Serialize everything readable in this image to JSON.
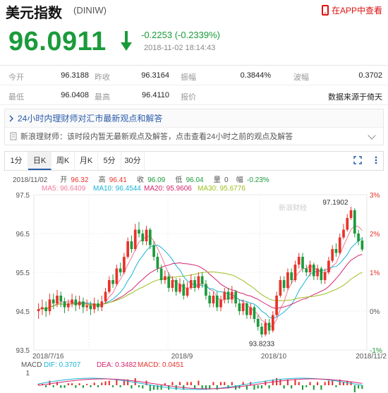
{
  "header": {
    "title": "美元指数",
    "code": "(DINIW)",
    "app_link": "在APP中查看"
  },
  "quote": {
    "price": "96.0911",
    "change": "-0.2253 (-0.2339%)",
    "time": "2018-11-02 18:14:43"
  },
  "stats": {
    "open_label": "今开",
    "open": "96.3188",
    "prev_label": "昨收",
    "prev": "96.3164",
    "amp_label": "振幅",
    "amp": "0.3844%",
    "wave_label": "波幅",
    "wave": "0.3702",
    "low_label": "最低",
    "low": "96.0408",
    "high_label": "最高",
    "high": "96.4110",
    "quote_label": "报价",
    "source": "数据来源于倚天"
  },
  "news": {
    "headline": "24小时内理财师对汇市最新观点和解答",
    "line": "新浪理财师：该时段内暂无最新观点及解答，点击查看24小时之前的观点及解答"
  },
  "tabs": [
    "1分",
    "日K",
    "周K",
    "月K",
    "5分",
    "30分"
  ],
  "active_tab": "日K",
  "chart_info": {
    "date": "2018/11/02",
    "open_label": "开",
    "open": "96.32",
    "high_label": "高",
    "high": "96.41",
    "close_label": "收",
    "close": "96.09",
    "low_label": "低",
    "low": "96.04",
    "vol_label": "量",
    "vol": "0",
    "amp_label": "幅",
    "amp": "-0.23%",
    "ma5": "MA5: 96.6409",
    "ma10": "MA10: 96.4544",
    "ma20": "MA20: 95.9606",
    "ma30": "MA30: 95.6776",
    "watermark": "新浪财经",
    "macd_label": "MACD",
    "dif": "DIF: 0.3707",
    "dea": "DEA: 0.3482",
    "macd": "MACD: 0.0451",
    "macd_tick": "1"
  },
  "colors": {
    "up": "#e8322b",
    "down": "#1a9b3b",
    "ma5": "#f07a9a",
    "ma10": "#19b3d6",
    "ma20": "#d6246e",
    "ma30": "#9bbf20"
  },
  "chart_data": {
    "type": "candlestick",
    "y_ticks": [
      "97.5",
      "96.5",
      "95.5",
      "94.5",
      "93.5"
    ],
    "y_tick_values": [
      97.5,
      96.5,
      95.5,
      94.5,
      93.5
    ],
    "pct_ticks": [
      "3%",
      "2%",
      "1%",
      "0%",
      "-1%"
    ],
    "x_labels": [
      "2018/7/16",
      "2018/9",
      "2018/10",
      "2018/11/2"
    ],
    "ylim": [
      93.5,
      97.5
    ],
    "high_annotation": "97.1902",
    "low_annotation": "93.8233",
    "candles": [
      [
        94.5,
        94.55,
        94.7,
        94.3
      ],
      [
        94.55,
        94.6,
        94.8,
        94.4
      ],
      [
        94.6,
        94.5,
        94.75,
        94.35
      ],
      [
        94.5,
        94.8,
        94.95,
        94.4
      ],
      [
        94.8,
        94.7,
        94.95,
        94.55
      ],
      [
        94.7,
        94.9,
        95.05,
        94.6
      ],
      [
        94.9,
        94.75,
        95.0,
        94.6
      ],
      [
        94.75,
        94.6,
        94.85,
        94.45
      ],
      [
        94.6,
        94.7,
        94.8,
        94.5
      ],
      [
        94.7,
        94.8,
        94.95,
        94.6
      ],
      [
        94.8,
        94.65,
        94.9,
        94.5
      ],
      [
        94.65,
        94.75,
        94.9,
        94.55
      ],
      [
        94.75,
        94.6,
        94.85,
        94.45
      ],
      [
        94.6,
        94.65,
        94.8,
        94.5
      ],
      [
        94.65,
        94.55,
        94.75,
        94.4
      ],
      [
        94.55,
        94.7,
        94.85,
        94.45
      ],
      [
        94.7,
        94.6,
        94.8,
        94.5
      ],
      [
        94.6,
        94.75,
        94.9,
        94.5
      ],
      [
        94.75,
        95.0,
        95.1,
        94.7
      ],
      [
        95.0,
        95.3,
        95.4,
        94.95
      ],
      [
        95.3,
        95.2,
        95.45,
        95.1
      ],
      [
        95.2,
        95.6,
        95.7,
        95.15
      ],
      [
        95.6,
        95.5,
        95.75,
        95.4
      ],
      [
        95.5,
        95.9,
        96.0,
        95.45
      ],
      [
        95.9,
        96.3,
        96.4,
        95.85
      ],
      [
        96.3,
        96.1,
        96.45,
        96.0
      ],
      [
        96.1,
        96.6,
        96.75,
        96.05
      ],
      [
        96.6,
        96.5,
        96.8,
        96.4
      ],
      [
        96.5,
        96.3,
        96.6,
        96.2
      ],
      [
        96.3,
        96.6,
        96.7,
        96.2
      ],
      [
        96.6,
        96.2,
        96.65,
        96.1
      ],
      [
        96.2,
        95.9,
        96.3,
        95.8
      ],
      [
        95.9,
        95.6,
        96.0,
        95.5
      ],
      [
        95.6,
        95.3,
        95.7,
        95.2
      ],
      [
        95.3,
        95.4,
        95.55,
        95.2
      ],
      [
        95.4,
        95.1,
        95.5,
        95.0
      ],
      [
        95.1,
        95.3,
        95.4,
        95.0
      ],
      [
        95.3,
        95.0,
        95.35,
        94.9
      ],
      [
        95.0,
        95.2,
        95.35,
        94.95
      ],
      [
        95.2,
        94.9,
        95.3,
        94.8
      ],
      [
        94.9,
        95.1,
        95.25,
        94.85
      ],
      [
        95.1,
        95.3,
        95.45,
        95.05
      ],
      [
        95.3,
        95.1,
        95.4,
        95.0
      ],
      [
        95.1,
        95.4,
        95.5,
        95.05
      ],
      [
        95.4,
        95.2,
        95.5,
        95.1
      ],
      [
        95.2,
        94.9,
        95.3,
        94.8
      ],
      [
        94.9,
        94.7,
        95.0,
        94.6
      ],
      [
        94.7,
        94.9,
        95.0,
        94.6
      ],
      [
        94.9,
        94.6,
        95.0,
        94.5
      ],
      [
        94.6,
        94.8,
        94.9,
        94.5
      ],
      [
        94.8,
        95.0,
        95.1,
        94.7
      ],
      [
        95.0,
        94.8,
        95.1,
        94.7
      ],
      [
        94.8,
        95.0,
        95.15,
        94.7
      ],
      [
        95.0,
        94.7,
        95.05,
        94.6
      ],
      [
        94.7,
        94.5,
        94.8,
        94.4
      ],
      [
        94.5,
        94.7,
        94.8,
        94.4
      ],
      [
        94.7,
        94.4,
        94.75,
        94.3
      ],
      [
        94.4,
        94.6,
        94.7,
        94.3
      ],
      [
        94.6,
        94.3,
        94.65,
        94.2
      ],
      [
        94.3,
        94.1,
        94.4,
        94.0
      ],
      [
        94.1,
        93.9,
        94.2,
        93.82
      ],
      [
        93.9,
        94.2,
        94.3,
        93.85
      ],
      [
        94.2,
        94.0,
        94.3,
        93.9
      ],
      [
        94.0,
        94.4,
        94.5,
        93.95
      ],
      [
        94.4,
        94.9,
        95.0,
        94.35
      ],
      [
        94.9,
        95.3,
        95.4,
        94.85
      ],
      [
        95.3,
        95.1,
        95.4,
        95.0
      ],
      [
        95.1,
        95.5,
        95.6,
        95.05
      ],
      [
        95.5,
        95.3,
        95.6,
        95.2
      ],
      [
        95.3,
        95.7,
        95.8,
        95.25
      ],
      [
        95.7,
        95.9,
        96.0,
        95.6
      ],
      [
        95.9,
        95.6,
        96.0,
        95.5
      ],
      [
        95.6,
        95.5,
        95.7,
        95.4
      ],
      [
        95.5,
        95.7,
        95.8,
        95.4
      ],
      [
        95.7,
        95.4,
        95.75,
        95.3
      ],
      [
        95.4,
        95.6,
        95.7,
        95.3
      ],
      [
        95.6,
        95.3,
        95.65,
        95.2
      ],
      [
        95.3,
        95.5,
        95.6,
        95.2
      ],
      [
        95.5,
        95.8,
        95.9,
        95.45
      ],
      [
        95.8,
        96.1,
        96.2,
        95.75
      ],
      [
        96.1,
        96.0,
        96.25,
        95.9
      ],
      [
        96.0,
        96.4,
        96.5,
        95.95
      ],
      [
        96.4,
        96.6,
        96.75,
        96.35
      ],
      [
        96.6,
        96.9,
        97.0,
        96.55
      ],
      [
        96.9,
        97.1,
        97.19,
        96.85
      ],
      [
        97.1,
        96.5,
        97.15,
        96.4
      ],
      [
        96.5,
        96.3,
        96.6,
        96.2
      ],
      [
        96.32,
        96.09,
        96.41,
        96.04
      ]
    ]
  }
}
